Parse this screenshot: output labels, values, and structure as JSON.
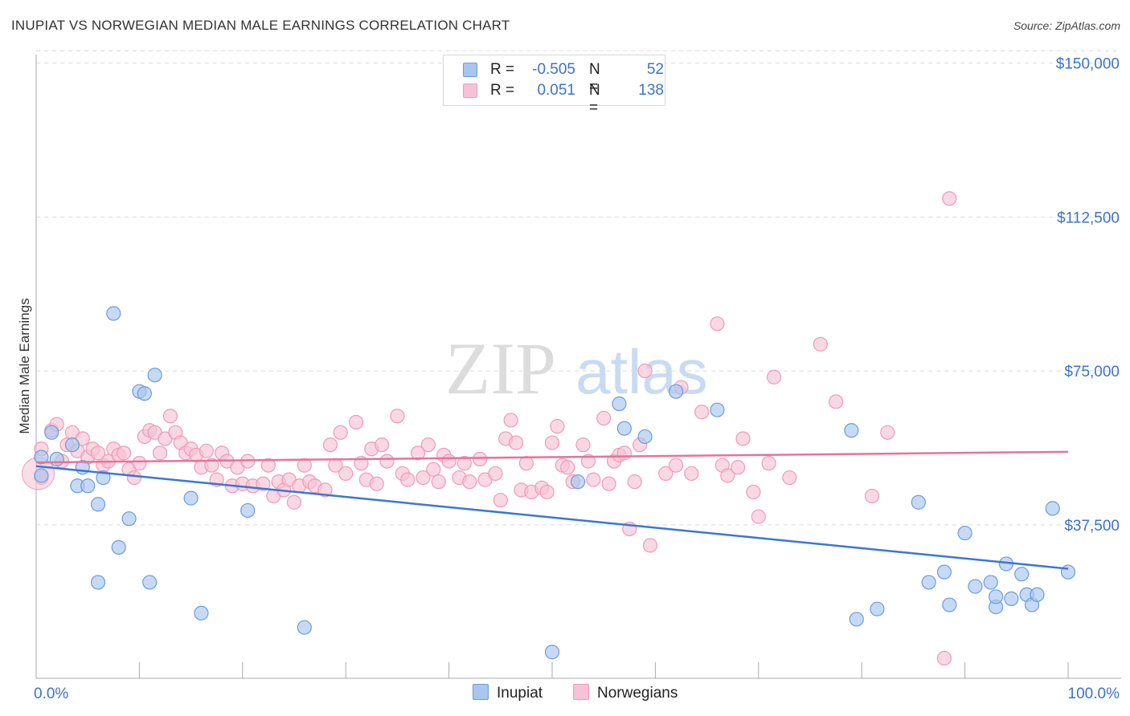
{
  "header": {
    "title": "INUPIAT VS NORWEGIAN MEDIAN MALE EARNINGS CORRELATION CHART",
    "source": "Source: ZipAtlas.com"
  },
  "watermark": {
    "zip": "ZIP",
    "atlas": "atlas"
  },
  "legend": {
    "r_label": "R =",
    "n_label": "N =",
    "rows": [
      {
        "name": "Inupiat",
        "r": "-0.505",
        "n": "52",
        "color": "#7aa7e6"
      },
      {
        "name": "Norwegians",
        "r": "0.051",
        "n": "138",
        "color": "#f0a1bd"
      }
    ]
  },
  "colors": {
    "inupiat_fill": "#a9c6f0",
    "inupiat_stroke": "#6d9bdc",
    "inupiat_line": "#3a76d6",
    "norwegian_fill": "#f7c3d4",
    "norwegian_stroke": "#ec9bb7",
    "norwegian_line": "#e8729b",
    "axis_text": "#3d72c9"
  },
  "chart_data": {
    "type": "scatter",
    "title": "INUPIAT VS NORWEGIAN MEDIAN MALE EARNINGS CORRELATION CHART",
    "ylabel": "Median Male Earnings",
    "xlabel": "",
    "x_tick_labels": [
      "0.0%",
      "100.0%"
    ],
    "y_tick_labels": [
      "$37,500",
      "$75,000",
      "$112,500",
      "$150,000"
    ],
    "y_ticks": [
      37500,
      75000,
      112500,
      150000
    ],
    "xlim": [
      0,
      100
    ],
    "ylim": [
      0,
      153000
    ],
    "grid": "horizontal dashed",
    "legend_position": "top-center",
    "series": [
      {
        "name": "Inupiat",
        "r": -0.505,
        "n": 52,
        "trend": {
          "x": [
            0,
            100
          ],
          "y": [
            51800,
            26800
          ]
        },
        "points": [
          [
            0.5,
            54000
          ],
          [
            0.5,
            49500
          ],
          [
            1.5,
            60000
          ],
          [
            2.0,
            53500
          ],
          [
            3.5,
            57000
          ],
          [
            4.0,
            47000
          ],
          [
            4.5,
            51500
          ],
          [
            5.0,
            47000
          ],
          [
            6.0,
            42500
          ],
          [
            6.5,
            49000
          ],
          [
            6.0,
            23500
          ],
          [
            7.5,
            89000
          ],
          [
            8.0,
            32000
          ],
          [
            9.0,
            39000
          ],
          [
            10.0,
            70000
          ],
          [
            10.5,
            69500
          ],
          [
            11.0,
            23500
          ],
          [
            11.5,
            74000
          ],
          [
            15.0,
            44000
          ],
          [
            16.0,
            16000
          ],
          [
            20.5,
            41000
          ],
          [
            26.0,
            12500
          ],
          [
            50.0,
            6500
          ],
          [
            52.5,
            48000
          ],
          [
            56.5,
            67000
          ],
          [
            57.0,
            61000
          ],
          [
            59.0,
            59000
          ],
          [
            62.0,
            70000
          ],
          [
            66.0,
            65500
          ],
          [
            79.0,
            60500
          ],
          [
            79.5,
            14500
          ],
          [
            81.5,
            17000
          ],
          [
            85.5,
            43000
          ],
          [
            86.5,
            23500
          ],
          [
            88.0,
            26000
          ],
          [
            88.5,
            18000
          ],
          [
            90.0,
            35500
          ],
          [
            91.0,
            22500
          ],
          [
            92.5,
            23500
          ],
          [
            93.0,
            17500
          ],
          [
            93.0,
            20000
          ],
          [
            94.0,
            28000
          ],
          [
            94.5,
            19500
          ],
          [
            95.5,
            25500
          ],
          [
            96.0,
            20500
          ],
          [
            96.5,
            18000
          ],
          [
            97.0,
            20500
          ],
          [
            98.5,
            41500
          ],
          [
            100.0,
            26000
          ]
        ]
      },
      {
        "name": "Norwegians",
        "r": 0.051,
        "n": 138,
        "trend": {
          "x": [
            0,
            100
          ],
          "y": [
            52700,
            55300
          ]
        },
        "points": [
          [
            0.5,
            56000
          ],
          [
            0.5,
            49000
          ],
          [
            1.5,
            60500
          ],
          [
            2.0,
            62000
          ],
          [
            2.5,
            53000
          ],
          [
            3.0,
            57000
          ],
          [
            3.5,
            60000
          ],
          [
            4.0,
            55500
          ],
          [
            4.5,
            58500
          ],
          [
            5.0,
            54000
          ],
          [
            5.5,
            56000
          ],
          [
            6.0,
            55000
          ],
          [
            6.5,
            52000
          ],
          [
            7.0,
            53000
          ],
          [
            7.5,
            56000
          ],
          [
            8.0,
            54500
          ],
          [
            8.5,
            55000
          ],
          [
            9.0,
            51000
          ],
          [
            9.5,
            49000
          ],
          [
            10.0,
            52500
          ],
          [
            10.5,
            59000
          ],
          [
            11.0,
            60500
          ],
          [
            11.5,
            60000
          ],
          [
            12.0,
            55000
          ],
          [
            12.5,
            58500
          ],
          [
            13.0,
            64000
          ],
          [
            13.5,
            60000
          ],
          [
            14.0,
            57500
          ],
          [
            14.5,
            55000
          ],
          [
            15.0,
            56000
          ],
          [
            15.5,
            54500
          ],
          [
            16.0,
            51500
          ],
          [
            16.5,
            55500
          ],
          [
            17.0,
            52000
          ],
          [
            17.5,
            48500
          ],
          [
            18.0,
            55000
          ],
          [
            18.5,
            53000
          ],
          [
            19.0,
            47000
          ],
          [
            19.5,
            51500
          ],
          [
            20.0,
            47500
          ],
          [
            20.5,
            53000
          ],
          [
            21.0,
            47000
          ],
          [
            22.0,
            47500
          ],
          [
            22.5,
            52000
          ],
          [
            23.0,
            44500
          ],
          [
            23.5,
            48000
          ],
          [
            24.0,
            46000
          ],
          [
            24.5,
            48500
          ],
          [
            25.0,
            43000
          ],
          [
            25.5,
            47000
          ],
          [
            26.0,
            52000
          ],
          [
            26.5,
            48000
          ],
          [
            27.0,
            47000
          ],
          [
            28.0,
            46000
          ],
          [
            28.5,
            57000
          ],
          [
            29.0,
            52000
          ],
          [
            29.5,
            60000
          ],
          [
            30.0,
            50000
          ],
          [
            31.0,
            62500
          ],
          [
            31.5,
            52500
          ],
          [
            32.0,
            48500
          ],
          [
            32.5,
            56000
          ],
          [
            33.0,
            47500
          ],
          [
            33.5,
            57000
          ],
          [
            34.0,
            53000
          ],
          [
            35.0,
            64000
          ],
          [
            35.5,
            50000
          ],
          [
            36.0,
            48500
          ],
          [
            37.0,
            55000
          ],
          [
            37.5,
            49000
          ],
          [
            38.0,
            57000
          ],
          [
            38.5,
            51000
          ],
          [
            39.0,
            48000
          ],
          [
            39.5,
            54500
          ],
          [
            40.0,
            53000
          ],
          [
            41.0,
            49000
          ],
          [
            41.5,
            52500
          ],
          [
            42.0,
            48000
          ],
          [
            43.0,
            53500
          ],
          [
            43.5,
            48500
          ],
          [
            44.5,
            50000
          ],
          [
            45.0,
            43500
          ],
          [
            45.5,
            58500
          ],
          [
            46.0,
            63000
          ],
          [
            46.5,
            57500
          ],
          [
            47.0,
            46000
          ],
          [
            47.5,
            52500
          ],
          [
            48.0,
            45500
          ],
          [
            49.0,
            46500
          ],
          [
            49.5,
            45500
          ],
          [
            50.0,
            57500
          ],
          [
            50.5,
            61500
          ],
          [
            51.0,
            52000
          ],
          [
            51.5,
            51500
          ],
          [
            52.0,
            48000
          ],
          [
            53.0,
            57000
          ],
          [
            53.5,
            53000
          ],
          [
            54.0,
            48500
          ],
          [
            55.0,
            63500
          ],
          [
            55.5,
            47500
          ],
          [
            56.0,
            53000
          ],
          [
            56.5,
            54500
          ],
          [
            57.0,
            55000
          ],
          [
            57.5,
            36500
          ],
          [
            58.0,
            48000
          ],
          [
            58.5,
            57000
          ],
          [
            59.0,
            75000
          ],
          [
            59.5,
            32500
          ],
          [
            61.0,
            50000
          ],
          [
            62.0,
            52000
          ],
          [
            62.5,
            71000
          ],
          [
            63.5,
            50000
          ],
          [
            64.5,
            65000
          ],
          [
            66.0,
            86500
          ],
          [
            66.5,
            52000
          ],
          [
            67.0,
            49500
          ],
          [
            68.0,
            51500
          ],
          [
            68.5,
            58500
          ],
          [
            69.5,
            45500
          ],
          [
            70.0,
            39500
          ],
          [
            71.0,
            52500
          ],
          [
            71.5,
            73500
          ],
          [
            73.0,
            49000
          ],
          [
            76.0,
            81500
          ],
          [
            77.5,
            67500
          ],
          [
            81.0,
            44500
          ],
          [
            82.5,
            60000
          ],
          [
            88.5,
            117000
          ],
          [
            88.0,
            5000
          ]
        ]
      }
    ]
  }
}
